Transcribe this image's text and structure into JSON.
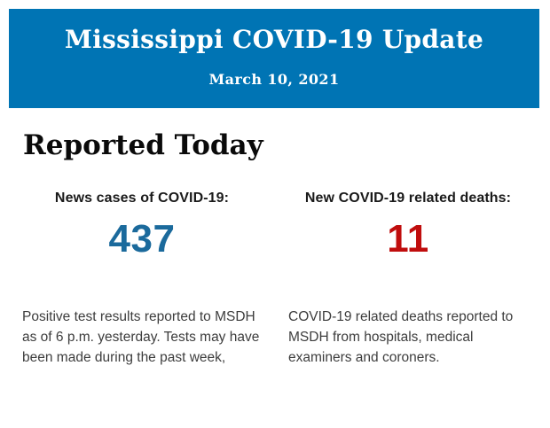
{
  "header": {
    "title": "Mississippi COVID-19 Update",
    "date": "March 10, 2021",
    "background_color": "#0074b4"
  },
  "section": {
    "title": "Reported Today"
  },
  "stats": [
    {
      "label": "News cases of COVID-19:",
      "value": "437",
      "value_color": "#1b6a9c",
      "description": "Positive test results reported to MSDH as of 6 p.m. yesterday. Tests may have been made during the past week,"
    },
    {
      "label": "New COVID-19 related deaths:",
      "value": "11",
      "value_color": "#c00d0d",
      "description": "COVID-19 related deaths reported to MSDH from hospitals, medical examiners and coroners."
    }
  ]
}
